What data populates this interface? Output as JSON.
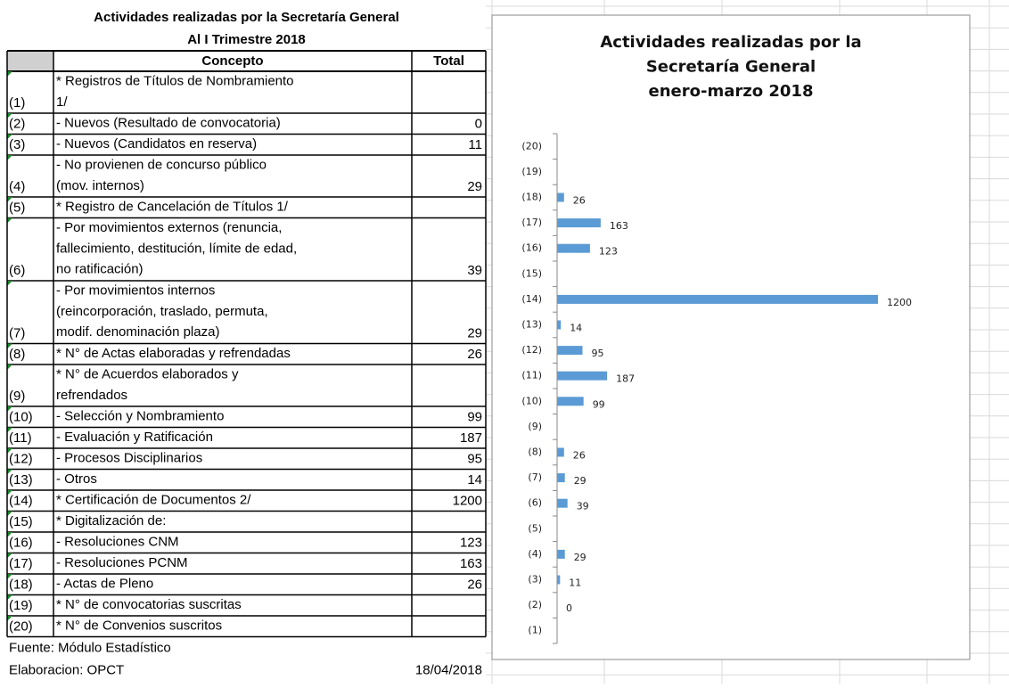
{
  "table": {
    "title": "Actividades realizadas por la Secretaría General",
    "subtitle": "Al I Trimestre 2018",
    "header": [
      "Concepto",
      "Total"
    ],
    "rows": [
      {
        "num": "(1)",
        "concept": [
          "* Registros de Títulos de Nombramiento",
          "1/"
        ],
        "total": null
      },
      {
        "num": "(2)",
        "concept": [
          "- Nuevos (Resultado de convocatoria)"
        ],
        "total": 0
      },
      {
        "num": "(3)",
        "concept": [
          "- Nuevos (Candidatos en reserva)"
        ],
        "total": 11
      },
      {
        "num": "(4)",
        "concept": [
          "- No provienen de concurso público",
          "(mov. internos)"
        ],
        "total": 29
      },
      {
        "num": "(5)",
        "concept": [
          "* Registro de Cancelación de Títulos 1/"
        ],
        "total": null
      },
      {
        "num": "(6)",
        "concept": [
          "- Por movimientos externos (renuncia,",
          "fallecimiento, destitución, límite de edad,",
          "no ratificación)"
        ],
        "total": 39
      },
      {
        "num": "(7)",
        "concept": [
          "- Por movimientos internos",
          "(reincorporación, traslado, permuta,",
          "modif. denominación plaza)"
        ],
        "total": 29
      },
      {
        "num": "(8)",
        "concept": [
          "* N° de Actas elaboradas y refrendadas"
        ],
        "total": 26
      },
      {
        "num": "(9)",
        "concept": [
          "* N° de Acuerdos elaborados y",
          "refrendados"
        ],
        "total": null
      },
      {
        "num": "(10)",
        "concept": [
          "- Selección y Nombramiento"
        ],
        "total": 99
      },
      {
        "num": "(11)",
        "concept": [
          "- Evaluación y Ratificación"
        ],
        "total": 187
      },
      {
        "num": "(12)",
        "concept": [
          "- Procesos Disciplinarios"
        ],
        "total": 95
      },
      {
        "num": "(13)",
        "concept": [
          "- Otros"
        ],
        "total": 14
      },
      {
        "num": "(14)",
        "concept": [
          "* Certificación de Documentos 2/"
        ],
        "total": 1200
      },
      {
        "num": "(15)",
        "concept": [
          "* Digitalización de:"
        ],
        "total": null
      },
      {
        "num": "(16)",
        "concept": [
          "- Resoluciones CNM"
        ],
        "total": 123
      },
      {
        "num": "(17)",
        "concept": [
          "- Resoluciones PCNM"
        ],
        "total": 163
      },
      {
        "num": "(18)",
        "concept": [
          "- Actas de Pleno"
        ],
        "total": 26
      },
      {
        "num": "(19)",
        "concept": [
          "* N° de convocatorias suscritas"
        ],
        "total": null
      },
      {
        "num": "(20)",
        "concept": [
          "* N° de Convenios suscritos"
        ],
        "total": null
      }
    ],
    "source": "Fuente: Módulo Estadístico",
    "credit": "Elaboracion: OPCT",
    "date": "18/04/2018"
  },
  "chart_data": {
    "type": "barh",
    "title": [
      "Actividades realizadas por la",
      "Secretaría General",
      "enero-marzo 2018"
    ],
    "categories": [
      "(1)",
      "(2)",
      "(3)",
      "(4)",
      "(5)",
      "(6)",
      "(7)",
      "(8)",
      "(9)",
      "(10)",
      "(11)",
      "(12)",
      "(13)",
      "(14)",
      "(15)",
      "(16)",
      "(17)",
      "(18)",
      "(19)",
      "(20)"
    ],
    "values": [
      null,
      0,
      11,
      29,
      null,
      39,
      29,
      26,
      null,
      99,
      187,
      95,
      14,
      1200,
      null,
      123,
      163,
      26,
      null,
      null
    ],
    "color": "#5b9bd5",
    "xlim": [
      0,
      1400
    ]
  }
}
